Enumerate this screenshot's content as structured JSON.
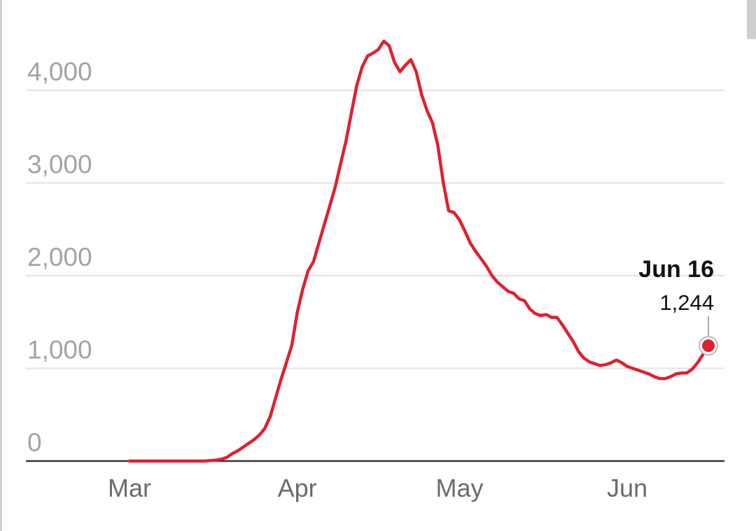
{
  "chart_data": {
    "type": "line",
    "categories": [
      "Mar",
      null,
      null,
      null,
      null,
      null,
      null,
      null,
      null,
      null,
      null,
      null,
      null,
      null,
      null,
      null,
      null,
      null,
      null,
      null,
      null,
      null,
      null,
      null,
      null,
      null,
      null,
      null,
      null,
      null,
      null,
      "Apr",
      null,
      null,
      null,
      null,
      null,
      null,
      null,
      null,
      null,
      null,
      null,
      null,
      null,
      null,
      null,
      null,
      null,
      null,
      null,
      null,
      null,
      null,
      null,
      null,
      null,
      null,
      null,
      null,
      null,
      "May",
      null,
      null,
      null,
      null,
      null,
      null,
      null,
      null,
      null,
      null,
      null,
      null,
      null,
      null,
      null,
      null,
      null,
      null,
      null,
      null,
      null,
      null,
      null,
      null,
      null,
      null,
      null,
      null,
      null,
      null,
      "Jun",
      null,
      null,
      null,
      null,
      null,
      null,
      null,
      null,
      null,
      null,
      null,
      null,
      null,
      null,
      null
    ],
    "series": [
      {
        "color": "#e0202e",
        "values": [
          0,
          0,
          0,
          0,
          0,
          0,
          0,
          0,
          0,
          0,
          0,
          0,
          0,
          0,
          0,
          5,
          10,
          20,
          40,
          80,
          110,
          150,
          190,
          230,
          280,
          350,
          480,
          680,
          880,
          1060,
          1250,
          1600,
          1850,
          2050,
          2150,
          2350,
          2550,
          2750,
          2950,
          3200,
          3450,
          3750,
          4050,
          4250,
          4370,
          4400,
          4440,
          4530,
          4480,
          4300,
          4200,
          4270,
          4330,
          4200,
          3950,
          3780,
          3650,
          3400,
          3000,
          2700,
          2680,
          2600,
          2480,
          2350,
          2260,
          2180,
          2100,
          2000,
          1930,
          1880,
          1830,
          1810,
          1750,
          1730,
          1640,
          1590,
          1570,
          1580,
          1550,
          1550,
          1470,
          1380,
          1290,
          1180,
          1110,
          1070,
          1050,
          1030,
          1040,
          1060,
          1090,
          1060,
          1020,
          1000,
          980,
          960,
          940,
          910,
          890,
          890,
          910,
          940,
          950,
          950,
          990,
          1060,
          1150,
          1244
        ]
      }
    ],
    "annotation": {
      "text": "Jun 16",
      "value_label": "1,244"
    },
    "ylim": [
      0,
      4500
    ],
    "yticks": [
      0,
      {
        "value": 1000,
        "label": "1,000"
      },
      {
        "value": 2000,
        "label": "2,000"
      },
      {
        "value": 3000,
        "label": "3,000"
      },
      {
        "value": 4000,
        "label": "4,000"
      }
    ],
    "grid": true
  }
}
